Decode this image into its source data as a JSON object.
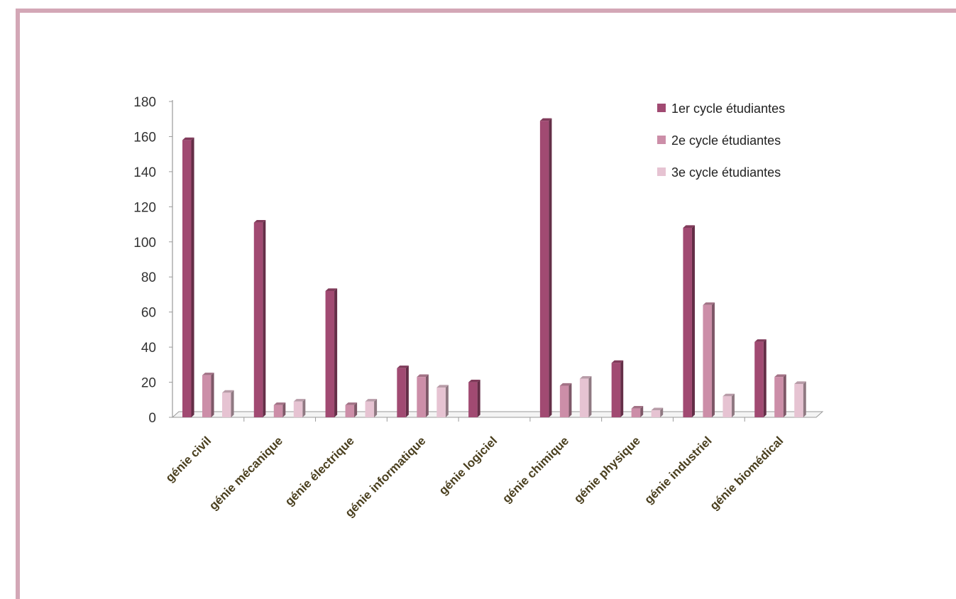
{
  "chart_data": {
    "type": "bar",
    "categories": [
      "génie civil",
      "génie mécanique",
      "génie électrique",
      "génie informatique",
      "génie logiciel",
      "génie chimique",
      "génie physique",
      "génie industriel",
      "génie biomédical"
    ],
    "series": [
      {
        "name": "1er cycle étudiantes",
        "color": "#a14a72",
        "values": [
          158,
          111,
          72,
          28,
          20,
          169,
          31,
          108,
          43
        ]
      },
      {
        "name": "2e cycle étudiantes",
        "color": "#cc8ea8",
        "values": [
          24,
          7,
          7,
          23,
          0,
          18,
          5,
          64,
          23
        ]
      },
      {
        "name": "3e cycle étudiantes",
        "color": "#e6c3d2",
        "values": [
          14,
          9,
          9,
          17,
          0,
          22,
          4,
          12,
          19
        ]
      }
    ],
    "ylim": [
      0,
      180
    ],
    "yticks": [
      0,
      20,
      40,
      60,
      80,
      100,
      120,
      140,
      160,
      180
    ],
    "grid": false,
    "legend": "top-right",
    "style": "3d-bar"
  }
}
